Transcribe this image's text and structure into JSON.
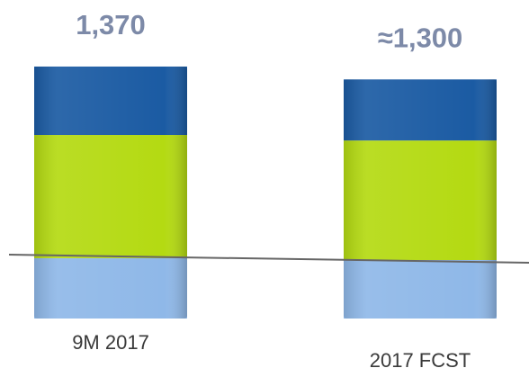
{
  "chart_data": {
    "type": "stacked_bar",
    "categories": [
      "9M 2017",
      "2017 FCST"
    ],
    "series": [
      {
        "color": "#8fb8e8",
        "values": [
          328,
          318
        ]
      },
      {
        "color": "#b4da12",
        "values": [
          670,
          650
        ]
      },
      {
        "color": "#1b5ba3",
        "values": [
          372,
          332
        ]
      }
    ],
    "totals": [
      1370,
      1300
    ],
    "total_labels": [
      "1,370",
      "≈1,300"
    ]
  }
}
